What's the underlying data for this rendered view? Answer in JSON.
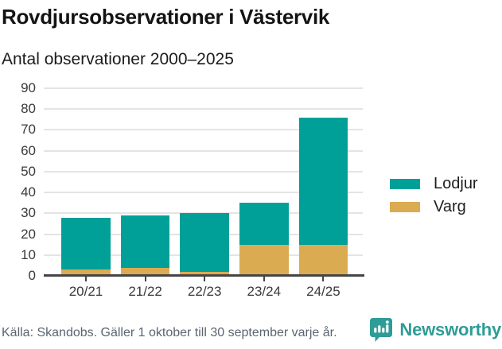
{
  "header": {
    "title": "Rovdjursobservationer i Västervik",
    "subtitle": "Antal observationer 2000–2025"
  },
  "chart_data": {
    "type": "bar",
    "stacked": true,
    "title": "Rovdjursobservationer i Västervik",
    "subtitle": "Antal observationer 2000–2025",
    "categories": [
      "20/21",
      "21/22",
      "22/23",
      "23/24",
      "24/25"
    ],
    "series": [
      {
        "name": "Lodjur",
        "color": "#00a099",
        "values": [
          25,
          25,
          28,
          20,
          61
        ]
      },
      {
        "name": "Varg",
        "color": "#dbab52",
        "values": [
          3,
          4,
          2,
          15,
          15
        ]
      }
    ],
    "stack_totals": [
      28,
      29,
      30,
      35,
      76
    ],
    "xlabel": "",
    "ylabel": "",
    "ylim": [
      0,
      90
    ],
    "yticks": [
      0,
      10,
      20,
      30,
      40,
      50,
      60,
      70,
      80,
      90
    ],
    "grid": true,
    "legend_position": "right",
    "axis_color": "#454545",
    "gridline_color": "#e4e4e4"
  },
  "footer": {
    "source": "Källa: Skandobs. Gäller 1 oktober till 30 september varje år.",
    "brand": "Newsworthy",
    "brand_color": "#2e9c97"
  }
}
